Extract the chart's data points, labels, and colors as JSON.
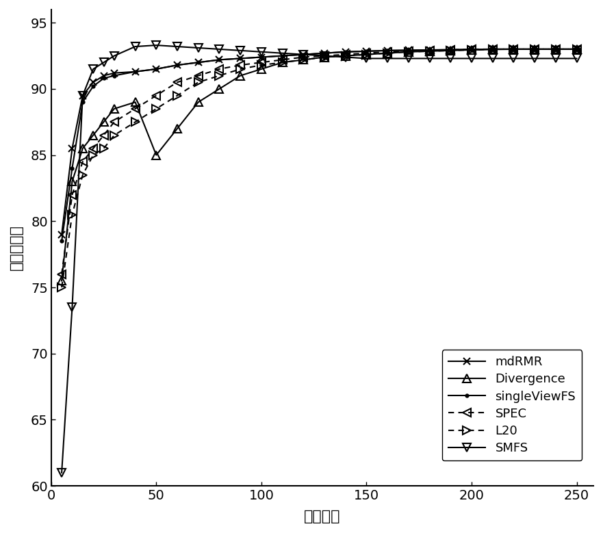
{
  "x_ticks": [
    0,
    50,
    100,
    150,
    200,
    250
  ],
  "xlim": [
    0,
    258
  ],
  "ylim": [
    60,
    96
  ],
  "y_ticks": [
    60,
    65,
    70,
    75,
    80,
    85,
    90,
    95
  ],
  "xlabel": "特征数量",
  "ylabel": "总体精度％",
  "series": {
    "mdRMR": {
      "x": [
        5,
        10,
        15,
        20,
        25,
        30,
        40,
        50,
        60,
        70,
        80,
        90,
        100,
        110,
        120,
        130,
        140,
        150,
        160,
        170,
        180,
        190,
        200,
        210,
        220,
        230,
        240,
        250
      ],
      "y": [
        79.0,
        85.5,
        89.5,
        90.5,
        91.0,
        91.2,
        91.3,
        91.5,
        91.8,
        92.0,
        92.2,
        92.3,
        92.4,
        92.5,
        92.6,
        92.7,
        92.8,
        92.85,
        92.9,
        92.92,
        92.94,
        92.96,
        92.98,
        93.0,
        93.0,
        93.0,
        93.0,
        93.0
      ],
      "color": "#000000",
      "linestyle": "solid",
      "marker": "x",
      "markersize": 7,
      "linewidth": 1.5
    },
    "Divergence": {
      "x": [
        5,
        10,
        15,
        20,
        25,
        30,
        40,
        50,
        60,
        70,
        80,
        90,
        100,
        110,
        120,
        130,
        140,
        150,
        160,
        170,
        180,
        190,
        200,
        210,
        220,
        230,
        240,
        250
      ],
      "y": [
        75.5,
        83.0,
        85.5,
        86.5,
        87.5,
        88.5,
        89.0,
        85.0,
        87.0,
        89.0,
        90.0,
        91.0,
        91.5,
        92.0,
        92.2,
        92.4,
        92.5,
        92.6,
        92.7,
        92.8,
        92.85,
        92.9,
        92.95,
        92.98,
        93.0,
        93.0,
        93.0,
        93.0
      ],
      "color": "#000000",
      "linestyle": "solid",
      "marker": "^",
      "markersize": 8,
      "linewidth": 1.5
    },
    "singleViewFS": {
      "x": [
        5,
        10,
        15,
        20,
        25,
        30,
        40,
        50,
        60,
        70,
        80,
        90,
        100,
        110,
        120,
        130,
        140,
        150,
        160,
        170,
        180,
        190,
        200,
        210,
        220,
        230,
        240,
        250
      ],
      "y": [
        78.5,
        84.0,
        89.0,
        90.2,
        90.8,
        91.0,
        91.3,
        91.5,
        91.8,
        92.0,
        92.2,
        92.3,
        92.4,
        92.5,
        92.6,
        92.7,
        92.8,
        92.85,
        92.9,
        92.92,
        92.94,
        92.96,
        92.98,
        93.0,
        93.0,
        93.0,
        93.0,
        93.0
      ],
      "color": "#000000",
      "linestyle": "solid",
      "marker": ".",
      "markersize": 6,
      "linewidth": 1.5
    },
    "SPEC": {
      "x": [
        5,
        10,
        15,
        20,
        25,
        30,
        40,
        50,
        60,
        70,
        80,
        90,
        100,
        110,
        120,
        130,
        140,
        150,
        160,
        170,
        180,
        190,
        200,
        210,
        220,
        230,
        240,
        250
      ],
      "y": [
        76.0,
        82.0,
        84.5,
        85.5,
        86.5,
        87.5,
        88.5,
        89.5,
        90.5,
        91.0,
        91.5,
        91.8,
        92.0,
        92.2,
        92.4,
        92.5,
        92.6,
        92.7,
        92.8,
        92.85,
        92.9,
        92.95,
        93.0,
        93.0,
        93.0,
        93.0,
        93.0,
        93.0
      ],
      "color": "#000000",
      "linestyle": "dotted",
      "marker": "<",
      "markersize": 8,
      "linewidth": 1.5
    },
    "L20": {
      "x": [
        5,
        10,
        15,
        20,
        25,
        30,
        40,
        50,
        60,
        70,
        80,
        90,
        100,
        110,
        120,
        130,
        140,
        150,
        160,
        170,
        180,
        190,
        200,
        210,
        220,
        230,
        240,
        250
      ],
      "y": [
        75.0,
        80.5,
        83.5,
        85.0,
        85.5,
        86.5,
        87.5,
        88.5,
        89.5,
        90.5,
        91.0,
        91.5,
        91.8,
        92.0,
        92.2,
        92.4,
        92.5,
        92.6,
        92.7,
        92.8,
        92.85,
        92.9,
        92.95,
        93.0,
        93.0,
        93.0,
        93.0,
        93.0
      ],
      "color": "#000000",
      "linestyle": "dotted",
      "marker": ">",
      "markersize": 8,
      "linewidth": 1.5
    },
    "SMFS": {
      "x": [
        5,
        10,
        15,
        20,
        25,
        30,
        40,
        50,
        60,
        70,
        80,
        90,
        100,
        110,
        120,
        130,
        140,
        150,
        160,
        170,
        180,
        190,
        200,
        210,
        220,
        230,
        240,
        250
      ],
      "y": [
        61.0,
        73.5,
        89.5,
        91.5,
        92.0,
        92.5,
        93.2,
        93.3,
        93.2,
        93.1,
        93.0,
        92.9,
        92.8,
        92.7,
        92.6,
        92.5,
        92.4,
        92.3,
        92.3,
        92.3,
        92.3,
        92.3,
        92.3,
        92.3,
        92.3,
        92.3,
        92.3,
        92.3
      ],
      "color": "#000000",
      "linestyle": "solid",
      "marker": "v",
      "markersize": 9,
      "linewidth": 1.5
    }
  },
  "font_size_ticks": 14,
  "font_size_labels": 16,
  "font_size_legend": 13
}
